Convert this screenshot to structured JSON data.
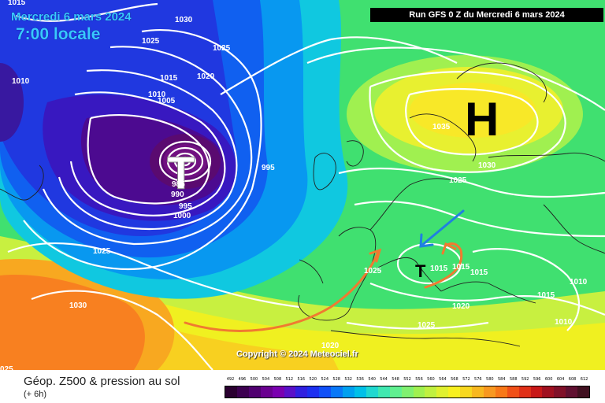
{
  "header": {
    "date": "Mercredi 6 mars 2024",
    "time": "7:00 locale",
    "run": "Run GFS 0 Z du Mercredi 6 mars 2024"
  },
  "copyright": "Copyright © 2024 Meteociel.fr",
  "footer": {
    "title": "Géop. Z500 & pression au sol",
    "subtitle": "(+ 6h)"
  },
  "scale": {
    "labels": [
      "492",
      "496",
      "500",
      "504",
      "508",
      "512",
      "516",
      "520",
      "524",
      "528",
      "532",
      "536",
      "540",
      "544",
      "548",
      "552",
      "556",
      "560",
      "564",
      "568",
      "572",
      "576",
      "580",
      "584",
      "588",
      "592",
      "596",
      "600",
      "604",
      "608",
      "612"
    ],
    "colors": [
      "#2a0030",
      "#3c0050",
      "#500070",
      "#6a0090",
      "#7a00b0",
      "#5a10c8",
      "#3020e0",
      "#1c30f0",
      "#1050f8",
      "#0878f8",
      "#00a0f0",
      "#00c0e8",
      "#20d8d0",
      "#40e8b0",
      "#60f090",
      "#80f070",
      "#a0f050",
      "#c0f040",
      "#e0f030",
      "#f8f020",
      "#f8d820",
      "#f8b820",
      "#f89820",
      "#f87818",
      "#f05018",
      "#e03018",
      "#c81818",
      "#a01020",
      "#801028",
      "#601030",
      "#401020"
    ]
  },
  "pressure_labels": [
    {
      "text": "1015"
    },
    {
      "text": "1030"
    },
    {
      "text": "1025"
    },
    {
      "text": "1025"
    },
    {
      "text": "1020"
    },
    {
      "text": "1015"
    },
    {
      "text": "1010"
    },
    {
      "text": "1005"
    },
    {
      "text": "1010"
    },
    {
      "text": "995"
    },
    {
      "text": "985"
    },
    {
      "text": "990"
    },
    {
      "text": "995"
    },
    {
      "text": "1000"
    },
    {
      "text": "1025"
    },
    {
      "text": "1030"
    },
    {
      "text": "1025"
    },
    {
      "text": "1035"
    },
    {
      "text": "1030"
    },
    {
      "text": "1025"
    },
    {
      "text": "1015"
    },
    {
      "text": "1015"
    },
    {
      "text": "1015"
    },
    {
      "text": "1020"
    },
    {
      "text": "1025"
    },
    {
      "text": "1020"
    },
    {
      "text": "1010"
    },
    {
      "text": "1015"
    },
    {
      "text": "1010"
    },
    {
      "text": "025"
    }
  ],
  "systems": {
    "low_atlantic": "T",
    "high_scandinavia": "H",
    "low_mediterranean": "T"
  },
  "colors": {
    "arrow_orange": "#f07a30",
    "arrow_blue": "#2080e0"
  }
}
